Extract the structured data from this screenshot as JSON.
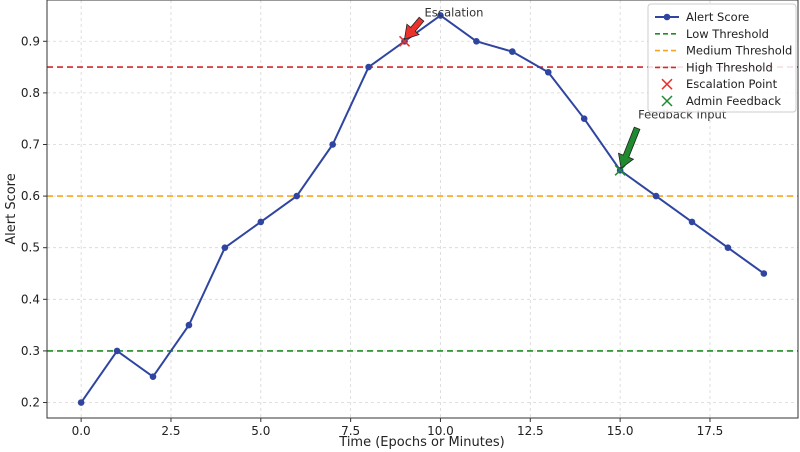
{
  "chart_data": {
    "type": "line",
    "title": "",
    "xlabel": "Time (Epochs or Minutes)",
    "ylabel": "Alert Score",
    "xlim": [
      -0.95,
      19.95
    ],
    "ylim": [
      0.17,
      0.98
    ],
    "xticks": [
      0.0,
      2.5,
      5.0,
      7.5,
      10.0,
      12.5,
      15.0,
      17.5
    ],
    "xtick_labels": [
      "0.0",
      "2.5",
      "5.0",
      "7.5",
      "10.0",
      "12.5",
      "15.0",
      "17.5"
    ],
    "yticks": [
      0.2,
      0.3,
      0.4,
      0.5,
      0.6,
      0.7,
      0.8,
      0.9
    ],
    "ytick_labels": [
      "0.2",
      "0.3",
      "0.4",
      "0.5",
      "0.6",
      "0.7",
      "0.8",
      "0.9"
    ],
    "grid": true,
    "legend_position": "top-right",
    "series": [
      {
        "name": "Alert Score",
        "color": "#2f45a0",
        "x": [
          0,
          1,
          2,
          3,
          4,
          5,
          6,
          7,
          8,
          9,
          10,
          11,
          12,
          13,
          14,
          15,
          16,
          17,
          18,
          19
        ],
        "values": [
          0.2,
          0.3,
          0.25,
          0.35,
          0.5,
          0.55,
          0.6,
          0.7,
          0.85,
          0.9,
          0.95,
          0.9,
          0.88,
          0.84,
          0.75,
          0.65,
          0.6,
          0.55,
          0.5,
          0.45
        ]
      }
    ],
    "thresholds": [
      {
        "name": "Low Threshold",
        "value": 0.3,
        "color": "#228b22"
      },
      {
        "name": "Medium Threshold",
        "value": 0.6,
        "color": "#f5a623"
      },
      {
        "name": "High Threshold",
        "value": 0.85,
        "color": "#d62728"
      }
    ],
    "markers": [
      {
        "name": "Escalation Point",
        "x": 9,
        "y": 0.9,
        "color": "#e8322b",
        "shape": "x"
      },
      {
        "name": "Admin Feedback",
        "x": 15,
        "y": 0.65,
        "color": "#1f8a2e",
        "shape": "x"
      }
    ],
    "annotations": [
      {
        "text": "Escalation",
        "x": 9,
        "y": 0.9,
        "arrow_color": "#e8322b"
      },
      {
        "text": "Feedback Input",
        "x": 15,
        "y": 0.65,
        "arrow_color": "#1f8a2e"
      }
    ]
  }
}
